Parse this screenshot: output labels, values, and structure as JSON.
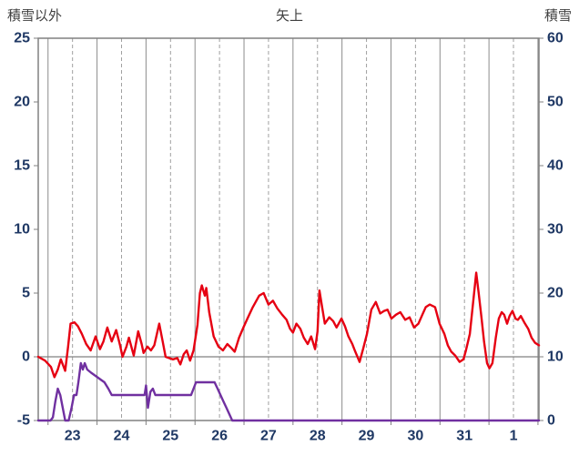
{
  "header": {
    "left_label": "積雪以外",
    "title": "矢上",
    "right_label": "積雪"
  },
  "colors": {
    "background": "#ffffff",
    "border": "#808080",
    "grid_solid": "#8c8c8c",
    "grid_dashed": "#a0a0a0",
    "zero_line": "#808080",
    "tick_text": "#1f3864",
    "header_text": "#3f3f3f"
  },
  "chart_data": {
    "type": "line",
    "title": "矢上",
    "left_axis": {
      "label": "積雪以外",
      "min": -5,
      "max": 25,
      "ticks": [
        25,
        20,
        15,
        10,
        5,
        0,
        -5
      ]
    },
    "right_axis": {
      "label": "積雪",
      "min": 0,
      "max": 60,
      "ticks": [
        60,
        50,
        40,
        30,
        20,
        10,
        0
      ]
    },
    "x_axis": {
      "labels": [
        "23",
        "24",
        "25",
        "26",
        "27",
        "28",
        "29",
        "30",
        "31",
        "1"
      ],
      "min": -0.2,
      "max": 10.02
    },
    "zero_line_left_value": 0,
    "grid": "vertical-only",
    "legend": "none",
    "series": [
      {
        "name": "積雪以外",
        "axis": "left",
        "color": "#e60012",
        "width": 2.4,
        "points": [
          [
            -0.2,
            0.0
          ],
          [
            -0.06,
            -0.3
          ],
          [
            0.06,
            -0.8
          ],
          [
            0.13,
            -1.6
          ],
          [
            0.2,
            -1.0
          ],
          [
            0.26,
            -0.2
          ],
          [
            0.32,
            -0.8
          ],
          [
            0.35,
            -1.1
          ],
          [
            0.41,
            0.8
          ],
          [
            0.46,
            2.6
          ],
          [
            0.54,
            2.7
          ],
          [
            0.61,
            2.4
          ],
          [
            0.69,
            1.8
          ],
          [
            0.78,
            1.0
          ],
          [
            0.87,
            0.5
          ],
          [
            0.97,
            1.6
          ],
          [
            1.06,
            0.6
          ],
          [
            1.13,
            1.2
          ],
          [
            1.21,
            2.3
          ],
          [
            1.3,
            1.2
          ],
          [
            1.39,
            2.1
          ],
          [
            1.47,
            0.9
          ],
          [
            1.52,
            0.0
          ],
          [
            1.6,
            0.8
          ],
          [
            1.65,
            1.5
          ],
          [
            1.75,
            0.1
          ],
          [
            1.84,
            2.0
          ],
          [
            1.91,
            1.0
          ],
          [
            1.95,
            0.3
          ],
          [
            2.03,
            0.8
          ],
          [
            2.1,
            0.5
          ],
          [
            2.17,
            0.9
          ],
          [
            2.27,
            2.6
          ],
          [
            2.34,
            1.2
          ],
          [
            2.4,
            0.0
          ],
          [
            2.47,
            -0.1
          ],
          [
            2.55,
            -0.2
          ],
          [
            2.64,
            -0.1
          ],
          [
            2.7,
            -0.6
          ],
          [
            2.77,
            0.2
          ],
          [
            2.83,
            0.5
          ],
          [
            2.9,
            -0.3
          ],
          [
            2.97,
            0.5
          ],
          [
            3.05,
            2.5
          ],
          [
            3.1,
            5.0
          ],
          [
            3.14,
            5.6
          ],
          [
            3.2,
            4.8
          ],
          [
            3.23,
            5.4
          ],
          [
            3.29,
            3.5
          ],
          [
            3.38,
            1.6
          ],
          [
            3.48,
            0.8
          ],
          [
            3.57,
            0.5
          ],
          [
            3.66,
            1.0
          ],
          [
            3.74,
            0.7
          ],
          [
            3.81,
            0.4
          ],
          [
            3.9,
            1.5
          ],
          [
            4.0,
            2.4
          ],
          [
            4.07,
            3.0
          ],
          [
            4.18,
            3.9
          ],
          [
            4.31,
            4.8
          ],
          [
            4.4,
            5.0
          ],
          [
            4.5,
            4.1
          ],
          [
            4.59,
            4.4
          ],
          [
            4.68,
            3.8
          ],
          [
            4.78,
            3.3
          ],
          [
            4.87,
            2.9
          ],
          [
            4.94,
            2.2
          ],
          [
            5.0,
            1.9
          ],
          [
            5.07,
            2.6
          ],
          [
            5.15,
            2.2
          ],
          [
            5.22,
            1.5
          ],
          [
            5.3,
            1.0
          ],
          [
            5.37,
            1.6
          ],
          [
            5.45,
            0.6
          ],
          [
            5.5,
            2.0
          ],
          [
            5.54,
            5.2
          ],
          [
            5.59,
            4.0
          ],
          [
            5.65,
            2.6
          ],
          [
            5.74,
            3.1
          ],
          [
            5.82,
            2.8
          ],
          [
            5.89,
            2.3
          ],
          [
            5.99,
            3.0
          ],
          [
            6.06,
            2.4
          ],
          [
            6.13,
            1.6
          ],
          [
            6.21,
            1.0
          ],
          [
            6.26,
            0.5
          ],
          [
            6.36,
            -0.4
          ],
          [
            6.43,
            0.6
          ],
          [
            6.51,
            1.8
          ],
          [
            6.6,
            3.7
          ],
          [
            6.69,
            4.3
          ],
          [
            6.78,
            3.4
          ],
          [
            6.86,
            3.6
          ],
          [
            6.93,
            3.7
          ],
          [
            7.01,
            3.0
          ],
          [
            7.1,
            3.3
          ],
          [
            7.19,
            3.5
          ],
          [
            7.29,
            2.9
          ],
          [
            7.38,
            3.1
          ],
          [
            7.47,
            2.3
          ],
          [
            7.56,
            2.6
          ],
          [
            7.64,
            3.3
          ],
          [
            7.71,
            3.9
          ],
          [
            7.79,
            4.1
          ],
          [
            7.9,
            3.9
          ],
          [
            7.99,
            2.6
          ],
          [
            8.09,
            1.8
          ],
          [
            8.16,
            0.9
          ],
          [
            8.23,
            0.4
          ],
          [
            8.31,
            0.1
          ],
          [
            8.4,
            -0.4
          ],
          [
            8.48,
            -0.2
          ],
          [
            8.53,
            0.5
          ],
          [
            8.61,
            1.8
          ],
          [
            8.68,
            4.4
          ],
          [
            8.74,
            6.6
          ],
          [
            8.79,
            5.0
          ],
          [
            8.85,
            3.0
          ],
          [
            8.9,
            1.2
          ],
          [
            8.96,
            -0.5
          ],
          [
            9.01,
            -0.9
          ],
          [
            9.07,
            -0.5
          ],
          [
            9.14,
            1.5
          ],
          [
            9.2,
            3.0
          ],
          [
            9.26,
            3.5
          ],
          [
            9.31,
            3.3
          ],
          [
            9.37,
            2.6
          ],
          [
            9.42,
            3.2
          ],
          [
            9.48,
            3.6
          ],
          [
            9.54,
            3.0
          ],
          [
            9.59,
            2.9
          ],
          [
            9.65,
            3.2
          ],
          [
            9.72,
            2.7
          ],
          [
            9.8,
            2.2
          ],
          [
            9.87,
            1.5
          ],
          [
            9.94,
            1.1
          ],
          [
            10.02,
            0.9
          ]
        ]
      },
      {
        "name": "積雪",
        "axis": "right",
        "color": "#7030a0",
        "width": 2.4,
        "points": [
          [
            -0.2,
            0
          ],
          [
            0.05,
            0
          ],
          [
            0.1,
            0.5
          ],
          [
            0.15,
            3
          ],
          [
            0.2,
            5
          ],
          [
            0.25,
            4
          ],
          [
            0.3,
            2
          ],
          [
            0.35,
            0
          ],
          [
            0.42,
            0
          ],
          [
            0.48,
            2
          ],
          [
            0.53,
            4
          ],
          [
            0.58,
            4
          ],
          [
            0.62,
            6
          ],
          [
            0.67,
            9
          ],
          [
            0.71,
            8
          ],
          [
            0.75,
            9
          ],
          [
            0.8,
            8
          ],
          [
            0.88,
            7.5
          ],
          [
            0.97,
            7
          ],
          [
            1.06,
            6.5
          ],
          [
            1.15,
            6
          ],
          [
            1.23,
            5
          ],
          [
            1.3,
            4
          ],
          [
            1.5,
            4
          ],
          [
            1.7,
            4
          ],
          [
            1.9,
            4
          ],
          [
            1.97,
            4
          ],
          [
            2.0,
            5.5
          ],
          [
            2.04,
            2
          ],
          [
            2.09,
            4.5
          ],
          [
            2.14,
            5
          ],
          [
            2.19,
            4
          ],
          [
            2.4,
            4
          ],
          [
            2.6,
            4
          ],
          [
            2.8,
            4
          ],
          [
            2.92,
            4
          ],
          [
            2.97,
            5
          ],
          [
            3.02,
            6
          ],
          [
            3.15,
            6
          ],
          [
            3.3,
            6
          ],
          [
            3.4,
            6
          ],
          [
            3.46,
            5
          ],
          [
            3.52,
            4
          ],
          [
            3.58,
            3
          ],
          [
            3.64,
            2
          ],
          [
            3.7,
            1
          ],
          [
            3.76,
            0
          ],
          [
            4.5,
            0
          ],
          [
            5.5,
            0
          ],
          [
            6.5,
            0
          ],
          [
            7.5,
            0
          ],
          [
            8.5,
            0
          ],
          [
            9.5,
            0
          ],
          [
            10.02,
            0
          ]
        ]
      }
    ]
  }
}
